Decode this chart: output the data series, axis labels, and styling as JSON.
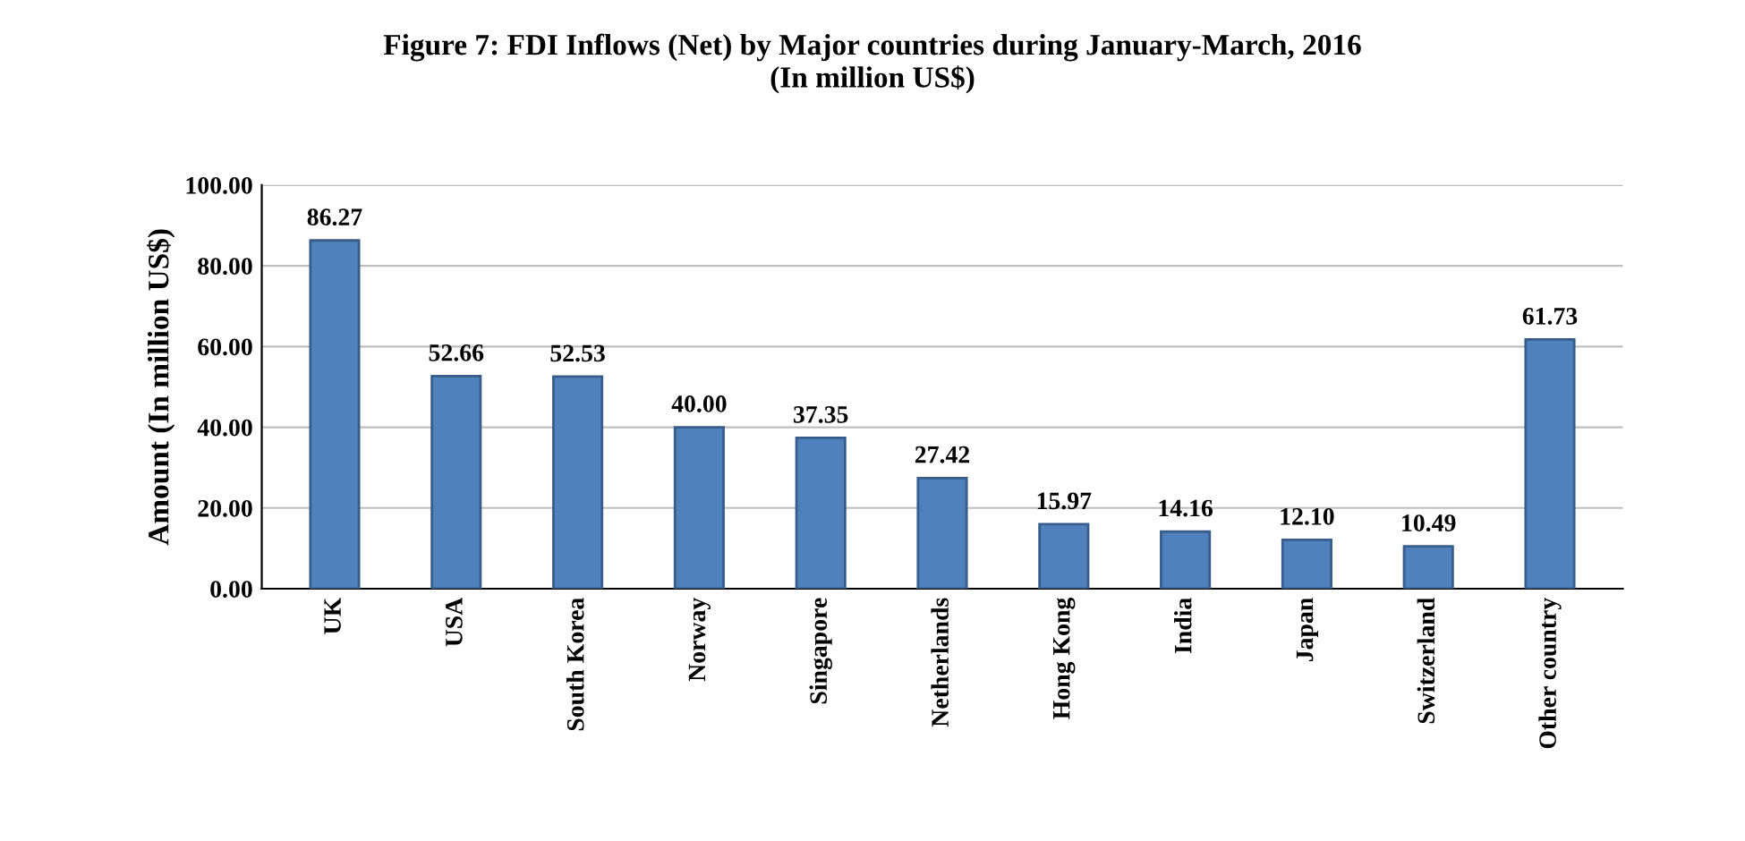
{
  "chart_data": {
    "type": "bar",
    "title": "Figure 7: FDI Inflows (Net) by Major countries during January-March, 2016\n(In million US$)",
    "ylabel": "Amount (In million US$)",
    "categories": [
      "UK",
      "USA",
      "South Korea",
      "Norway",
      "Singapore",
      "Netherlands",
      "Hong Kong",
      "India",
      "Japan",
      "Switzerland",
      "Other country"
    ],
    "values": [
      86.27,
      52.66,
      52.53,
      40.0,
      37.35,
      27.42,
      15.97,
      14.16,
      12.1,
      10.49,
      61.73
    ],
    "value_labels": [
      "86.27",
      "52.66",
      "52.53",
      "40.00",
      "37.35",
      "27.42",
      "15.97",
      "14.16",
      "12.10",
      "10.49",
      "61.73"
    ],
    "color": "#4f81bd",
    "ylim": [
      0,
      100
    ],
    "yticks": [
      {
        "value": 0,
        "label": "0.00"
      },
      {
        "value": 20,
        "label": "20.00"
      },
      {
        "value": 40,
        "label": "40.00"
      },
      {
        "value": 60,
        "label": "60.00"
      },
      {
        "value": 80,
        "label": "80.00"
      },
      {
        "value": 100,
        "label": "100.00"
      }
    ],
    "grid": "y"
  }
}
